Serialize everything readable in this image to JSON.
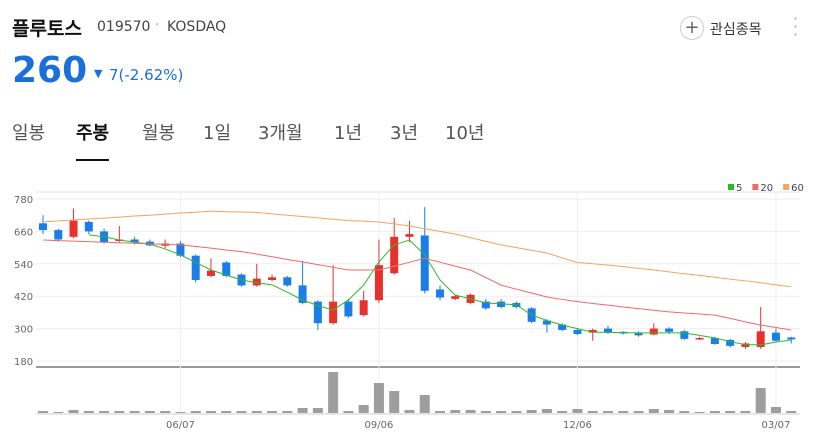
{
  "header": {
    "name": "플루토스",
    "code": "019570",
    "market": "KOSDAQ",
    "price": "260",
    "change": "7(-2.62%)",
    "watch_button": "관심종목"
  },
  "tabs": {
    "items": [
      "일봉",
      "주봉",
      "월봉",
      "1일",
      "3개월",
      "1년",
      "3년",
      "10년"
    ],
    "selected": 1
  },
  "chart_data": {
    "type": "candlestick",
    "categories": [
      null,
      null,
      null,
      null,
      null,
      null,
      null,
      null,
      null,
      "06/07",
      null,
      null,
      null,
      null,
      null,
      null,
      null,
      null,
      null,
      null,
      null,
      null,
      "09/06",
      null,
      null,
      null,
      null,
      null,
      null,
      null,
      null,
      null,
      null,
      null,
      null,
      "12/06",
      null,
      null,
      null,
      null,
      null,
      null,
      null,
      null,
      null,
      null,
      null,
      null,
      "03/07",
      null
    ],
    "open": [
      690,
      665,
      640,
      695,
      660,
      625,
      630,
      622,
      607,
      615,
      570,
      495,
      545,
      500,
      460,
      480,
      490,
      460,
      400,
      320,
      400,
      350,
      405,
      505,
      640,
      645,
      445,
      410,
      395,
      400,
      400,
      395,
      375,
      330,
      315,
      295,
      285,
      300,
      288,
      285,
      278,
      300,
      290,
      262,
      265,
      258,
      232,
      232,
      285,
      267
    ],
    "high": [
      720,
      670,
      745,
      700,
      670,
      680,
      640,
      630,
      630,
      625,
      575,
      560,
      550,
      505,
      540,
      500,
      495,
      550,
      405,
      535,
      410,
      440,
      630,
      710,
      700,
      750,
      460,
      425,
      430,
      410,
      410,
      400,
      380,
      335,
      320,
      300,
      300,
      310,
      290,
      290,
      320,
      305,
      295,
      270,
      270,
      262,
      250,
      380,
      300,
      270
    ],
    "low": [
      650,
      622,
      635,
      650,
      615,
      620,
      612,
      605,
      598,
      565,
      470,
      490,
      490,
      455,
      455,
      475,
      455,
      390,
      295,
      315,
      340,
      345,
      395,
      500,
      620,
      430,
      405,
      405,
      390,
      370,
      375,
      375,
      320,
      285,
      290,
      275,
      255,
      280,
      278,
      270,
      275,
      280,
      258,
      258,
      240,
      230,
      225,
      225,
      250,
      245
    ],
    "close": [
      665,
      630,
      700,
      660,
      620,
      630,
      620,
      608,
      615,
      570,
      480,
      515,
      495,
      460,
      485,
      490,
      460,
      395,
      320,
      400,
      345,
      405,
      535,
      640,
      650,
      440,
      415,
      420,
      425,
      375,
      380,
      380,
      325,
      315,
      295,
      280,
      295,
      285,
      282,
      275,
      300,
      288,
      262,
      265,
      243,
      236,
      245,
      290,
      255,
      260
    ],
    "up_color": "#e8312f",
    "down_color": "#1b7de8",
    "series": [
      {
        "name": "5",
        "color": "#2db92d",
        "values": [
          null,
          null,
          null,
          647,
          640,
          628,
          620,
          613,
          595,
          573,
          545,
          517,
          498,
          480,
          470,
          462,
          435,
          406,
          385,
          369,
          406,
          461,
          547,
          610,
          628,
          573,
          480,
          424,
          410,
          395,
          392,
          388,
          350,
          330,
          313,
          300,
          287,
          286,
          285,
          284,
          284,
          284,
          284,
          275,
          265,
          252,
          240,
          240,
          250,
          258
        ]
      },
      {
        "name": "20",
        "color": "#f0696a",
        "values": [
          628,
          626,
          624,
          622,
          620,
          618,
          616,
          614,
          612,
          610,
          604,
          598,
          591,
          585,
          576,
          566,
          556,
          547,
          537,
          527,
          517,
          517,
          517,
          531,
          546,
          560,
          546,
          531,
          517,
          489,
          461,
          446,
          432,
          417,
          408,
          400,
          393,
          387,
          380,
          374,
          368,
          362,
          358,
          354,
          350,
          338,
          325,
          313,
          304,
          295
        ]
      },
      {
        "name": "60",
        "color": "#f4a460",
        "values": [
          695,
          699,
          702,
          706,
          709,
          713,
          717,
          720,
          724,
          728,
          731,
          735,
          733,
          732,
          730,
          725,
          720,
          715,
          710,
          705,
          700,
          698,
          695,
          688,
          680,
          670,
          660,
          650,
          637,
          623,
          610,
          600,
          590,
          580,
          562,
          545,
          540,
          535,
          530,
          523,
          517,
          510,
          503,
          497,
          490,
          483,
          477,
          470,
          462,
          455
        ]
      }
    ],
    "volume": [
      2,
      1,
      3,
      2,
      2,
      2,
      2,
      2,
      2,
      1,
      2,
      2,
      2,
      2,
      2,
      2,
      2,
      5,
      5,
      41,
      2,
      8,
      30,
      22,
      3,
      18,
      2,
      3,
      3,
      2,
      2,
      2,
      3,
      4,
      2,
      4,
      2,
      2,
      2,
      2,
      4,
      3,
      2,
      1,
      2,
      2,
      2,
      25,
      6,
      2
    ],
    "volume_color": "#9e9e9e",
    "ylim": [
      180,
      780
    ],
    "yticks": [
      180,
      300,
      420,
      540,
      660,
      780
    ],
    "grid": true
  }
}
